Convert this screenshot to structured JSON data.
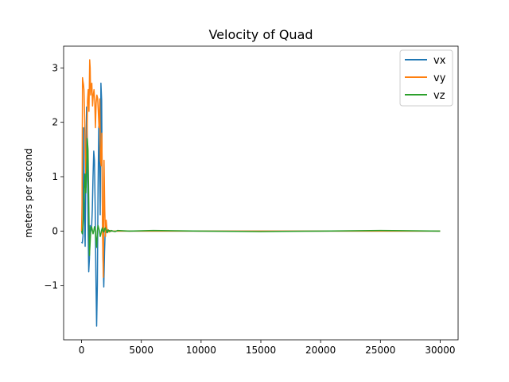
{
  "chart_data": {
    "type": "line",
    "title": "Velocity of Quad",
    "xlabel": "",
    "ylabel": "meters per second",
    "xlim": [
      -1500,
      31500
    ],
    "ylim": [
      -2.0,
      3.4
    ],
    "xticks": [
      0,
      5000,
      10000,
      15000,
      20000,
      25000,
      30000
    ],
    "yticks": [
      -1,
      0,
      1,
      2,
      3
    ],
    "ytick_labels": [
      "−1",
      "0",
      "1",
      "2",
      "3"
    ],
    "grid": false,
    "legend_position": "top-right",
    "series": [
      {
        "name": "vx",
        "color": "#1f77b4",
        "x": [
          0,
          60,
          120,
          180,
          240,
          300,
          360,
          420,
          480,
          540,
          600,
          660,
          720,
          780,
          840,
          900,
          960,
          1020,
          1080,
          1140,
          1200,
          1260,
          1320,
          1380,
          1440,
          1500,
          1560,
          1620,
          1680,
          1740,
          1800,
          1860,
          1920,
          1980,
          2040,
          2100,
          2160,
          2220,
          2280,
          2340,
          2400,
          2460,
          2520,
          2600,
          2800,
          3000,
          4000,
          6000,
          10000,
          15000,
          20000,
          25000,
          30000
        ],
        "y": [
          -0.2,
          -0.22,
          -0.1,
          1.9,
          0.3,
          -0.28,
          1.2,
          2.28,
          1.7,
          0.2,
          -0.75,
          -0.5,
          0.1,
          0.0,
          0.05,
          0.4,
          1.0,
          1.47,
          1.3,
          0.4,
          -0.8,
          -1.75,
          -1.0,
          0.8,
          1.92,
          1.3,
          0.3,
          2.72,
          2.4,
          0.5,
          -0.5,
          -1.03,
          -0.4,
          0.02,
          0.0,
          -0.03,
          0.02,
          0.0,
          0.01,
          0.0,
          0.01,
          0.0,
          0.0,
          0.0,
          0.0,
          0.0,
          0.0,
          0.0,
          0.0,
          0.0,
          0.0,
          0.0,
          0.0
        ]
      },
      {
        "name": "vy",
        "color": "#ff7f0e",
        "x": [
          0,
          40,
          80,
          120,
          160,
          200,
          260,
          320,
          380,
          440,
          500,
          560,
          620,
          680,
          720,
          760,
          800,
          860,
          920,
          980,
          1040,
          1100,
          1160,
          1220,
          1280,
          1340,
          1400,
          1460,
          1520,
          1580,
          1640,
          1700,
          1760,
          1820,
          1880,
          1940,
          2000,
          2060,
          2120,
          2180,
          2240,
          2300,
          2360,
          2420,
          2500,
          2600,
          2800,
          3000,
          4000,
          6000,
          10000,
          15000,
          20000,
          25000,
          30000
        ],
        "y": [
          0.0,
          0.5,
          2.82,
          2.75,
          2.7,
          2.6,
          2.1,
          1.4,
          0.8,
          1.6,
          2.4,
          2.6,
          2.2,
          3.15,
          3.0,
          2.5,
          2.65,
          2.72,
          2.3,
          2.5,
          2.6,
          2.4,
          1.9,
          2.35,
          2.5,
          2.45,
          2.2,
          1.9,
          2.43,
          1.3,
          1.2,
          1.8,
          -0.1,
          -0.85,
          1.3,
          0.4,
          -0.1,
          0.2,
          0.05,
          0.0,
          0.02,
          -0.02,
          0.01,
          0.0,
          0.0,
          0.0,
          0.0,
          0.0,
          0.0,
          0.0,
          0.0,
          0.0,
          0.0,
          0.0,
          0.0
        ]
      },
      {
        "name": "vz",
        "color": "#2ca02c",
        "x": [
          0,
          60,
          120,
          180,
          240,
          300,
          360,
          420,
          480,
          540,
          600,
          660,
          720,
          780,
          840,
          900,
          960,
          1020,
          1080,
          1140,
          1200,
          1260,
          1320,
          1380,
          1440,
          1500,
          1560,
          1620,
          1680,
          1740,
          1800,
          1860,
          1920,
          1980,
          2040,
          2100,
          2160,
          2220,
          2280,
          2340,
          2400,
          2460,
          2520,
          2600,
          2800,
          3000,
          4000,
          6000,
          10000,
          15000,
          20000,
          25000,
          30000
        ],
        "y": [
          0.0,
          -0.05,
          0.1,
          0.35,
          0.8,
          1.05,
          0.7,
          1.1,
          1.7,
          1.5,
          0.6,
          -0.45,
          -0.2,
          0.05,
          0.08,
          0.02,
          -0.05,
          0.0,
          0.08,
          0.04,
          -0.15,
          -0.3,
          0.0,
          0.1,
          0.05,
          0.0,
          -0.1,
          -0.05,
          0.02,
          0.06,
          0.0,
          -0.02,
          0.04,
          0.06,
          0.02,
          0.0,
          -0.03,
          0.02,
          0.0,
          0.01,
          -0.01,
          0.0,
          0.01,
          0.0,
          -0.01,
          0.01,
          0.0,
          0.01,
          0.0,
          -0.01,
          0.0,
          0.01,
          0.0
        ]
      }
    ]
  }
}
